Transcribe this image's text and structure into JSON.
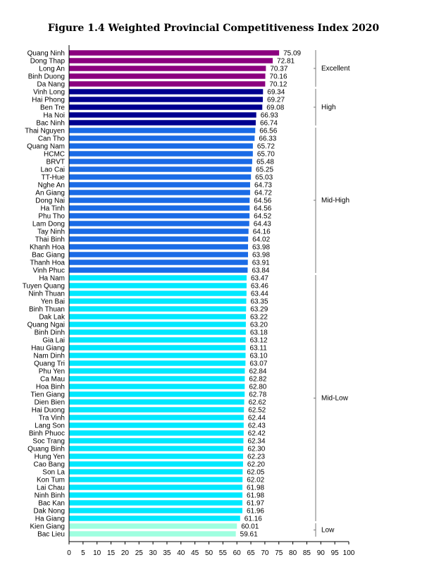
{
  "chart_data": {
    "type": "bar",
    "orientation": "horizontal",
    "title": "Figure 1.4 Weighted Provincial Competitiveness Index 2020",
    "xlabel": "",
    "ylabel": "",
    "xlim": [
      0,
      100
    ],
    "xticks": [
      0,
      5,
      10,
      15,
      20,
      25,
      30,
      35,
      40,
      45,
      50,
      55,
      60,
      65,
      70,
      75,
      80,
      85,
      90,
      95,
      100
    ],
    "categories": [
      "Quang Ninh",
      "Dong Thap",
      "Long An",
      "Binh Duong",
      "Da Nang",
      "Vinh Long",
      "Hai Phong",
      "Ben Tre",
      "Ha Noi",
      "Bac Ninh",
      "Thai Nguyen",
      "Can Tho",
      "Quang Nam",
      "HCMC",
      "BRVT",
      "Lao Cai",
      "TT-Hue",
      "Nghe An",
      "An Giang",
      "Dong Nai",
      "Ha Tinh",
      "Phu Tho",
      "Lam Dong",
      "Tay Ninh",
      "Thai Binh",
      "Khanh Hoa",
      "Bac Giang",
      "Thanh Hoa",
      "Vinh Phuc",
      "Ha Nam",
      "Tuyen Quang",
      "Ninh Thuan",
      "Yen Bai",
      "Binh Thuan",
      "Dak Lak",
      "Quang Ngai",
      "Binh Dinh",
      "Gia Lai",
      "Hau Giang",
      "Nam Dinh",
      "Quang Tri",
      "Phu Yen",
      "Ca Mau",
      "Hoa Binh",
      "Tien Giang",
      "Dien Bien",
      "Hai Duong",
      "Tra Vinh",
      "Lang Son",
      "Binh Phuoc",
      "Soc Trang",
      "Quang Binh",
      "Hung Yen",
      "Cao Bang",
      "Son La",
      "Kon Tum",
      "Lai Chau",
      "Ninh Binh",
      "Bac Kan",
      "Dak Nong",
      "Ha Giang",
      "Kien Giang",
      "Bac Lieu"
    ],
    "values": [
      75.09,
      72.81,
      70.37,
      70.16,
      70.12,
      69.34,
      69.27,
      69.08,
      66.93,
      66.74,
      66.56,
      66.33,
      65.72,
      65.7,
      65.48,
      65.25,
      65.03,
      64.73,
      64.72,
      64.56,
      64.56,
      64.52,
      64.43,
      64.16,
      64.02,
      63.98,
      63.98,
      63.91,
      63.84,
      63.47,
      63.46,
      63.44,
      63.35,
      63.29,
      63.22,
      63.2,
      63.18,
      63.12,
      63.11,
      63.1,
      63.07,
      62.84,
      62.82,
      62.8,
      62.78,
      62.62,
      62.52,
      62.44,
      62.43,
      62.42,
      62.34,
      62.3,
      62.23,
      62.2,
      62.05,
      62.02,
      61.98,
      61.98,
      61.97,
      61.96,
      61.16,
      60.01,
      59.61
    ],
    "value_labels": [
      "75.09",
      "72.81",
      "70.37",
      "70.16",
      "70.12",
      "69.34",
      "69.27",
      "69.08",
      "66.93",
      "66.74",
      "66.56",
      "66.33",
      "65.72",
      "65.70",
      "65.48",
      "65.25",
      "65.03",
      "64.73",
      "64.72",
      "64.56",
      "64.56",
      "64.52",
      "64.43",
      "64.16",
      "64.02",
      "63.98",
      "63.98",
      "63.91",
      "63.84",
      "63.47",
      "63.46",
      "63.44",
      "63.35",
      "63.29",
      "63.22",
      "63.20",
      "63.18",
      "63.12",
      "63.11",
      "63.10",
      "63.07",
      "62.84",
      "62.82",
      "62.80",
      "62.78",
      "62.62",
      "62.52",
      "62.44",
      "62.43",
      "62.42",
      "62.34",
      "62.30",
      "62.23",
      "62.20",
      "62.05",
      "62.02",
      "61.98",
      "61.98",
      "61.97",
      "61.96",
      "61.16",
      "60.01",
      "59.61"
    ],
    "groups": [
      {
        "name": "Excellent",
        "first": 0,
        "last": 4,
        "color": "#8b007f"
      },
      {
        "name": "High",
        "first": 5,
        "last": 9,
        "color": "#00008f"
      },
      {
        "name": "Mid-High",
        "first": 10,
        "last": 28,
        "color": "#1a6be6"
      },
      {
        "name": "Mid-Low",
        "first": 29,
        "last": 60,
        "color": "#00e8ff"
      },
      {
        "name": "Low",
        "first": 61,
        "last": 62,
        "color": "#9fffe0"
      }
    ],
    "grid": false,
    "legend": "none"
  }
}
